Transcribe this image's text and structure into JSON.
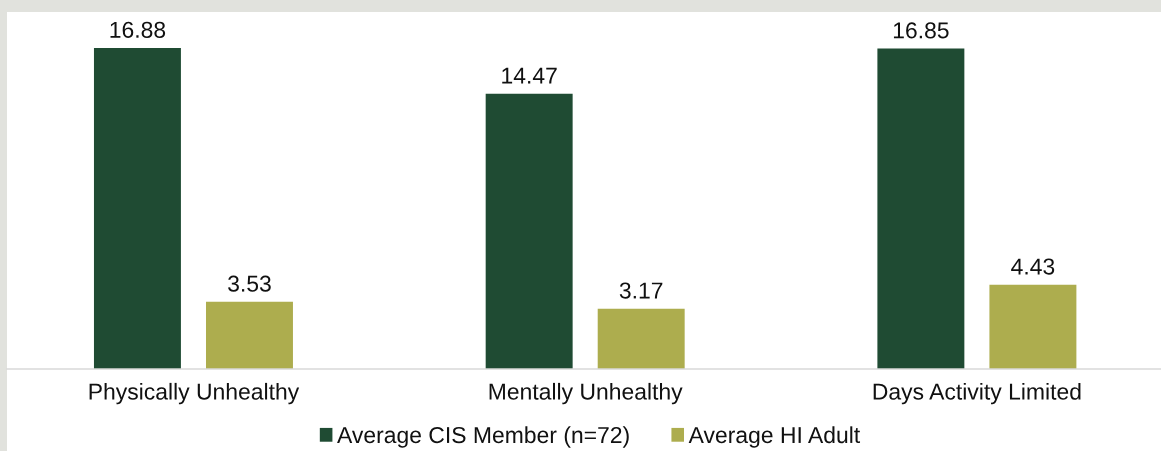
{
  "chart_data": {
    "type": "bar",
    "categories": [
      "Physically Unhealthy",
      "Mentally Unhealthy",
      "Days Activity Limited"
    ],
    "series": [
      {
        "name": "Average CIS Member (n=72)",
        "color": "#1f4b33",
        "values": [
          16.88,
          14.47,
          16.85
        ]
      },
      {
        "name": "Average HI Adult",
        "color": "#adad4e",
        "values": [
          3.53,
          3.17,
          4.43
        ]
      }
    ],
    "data_labels": true,
    "legend": "bottom",
    "grid": false,
    "tick_labels": "x"
  }
}
